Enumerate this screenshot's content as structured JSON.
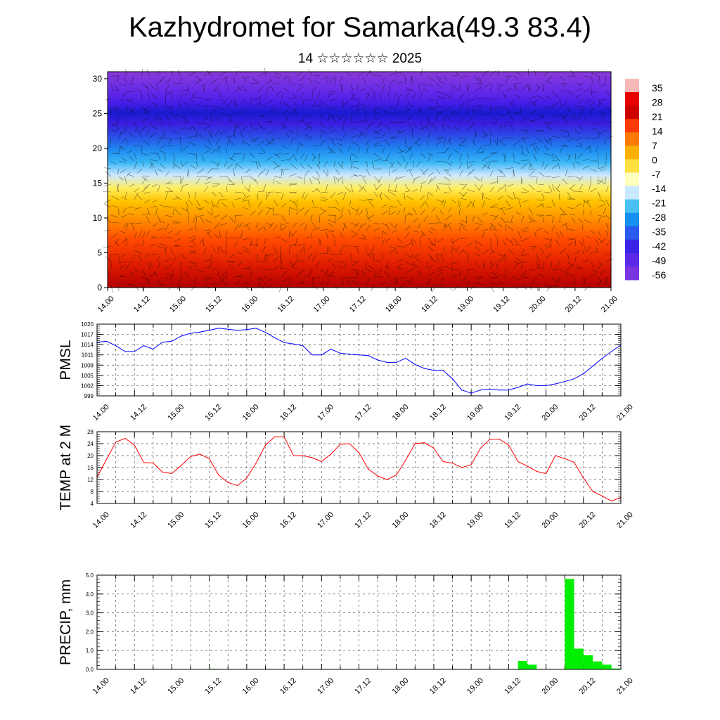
{
  "title": "Kazhydromet for Samarka(49.3 83.4)",
  "subtitle": "14 ☆☆☆☆☆☆ 2025",
  "time_ticks": [
    "14.00",
    "14.12",
    "15.00",
    "15.12",
    "16.00",
    "16.12",
    "17.00",
    "17.12",
    "18.00",
    "18.12",
    "19.00",
    "19.12",
    "20.00",
    "20.12",
    "21.00"
  ],
  "colors": {
    "pmsl_line": "#0000ff",
    "temp_line": "#ff0000",
    "precip_bar": "#00ee00"
  },
  "chart_data": [
    {
      "type": "heatmap",
      "title": "",
      "xlabel": "",
      "ylabel": "",
      "y_ticks": [
        "0",
        "5",
        "10",
        "15",
        "20",
        "25",
        "30"
      ],
      "ylim": [
        0,
        31
      ],
      "colorbar_labels": [
        "35",
        "28",
        "21",
        "14",
        "7",
        "0",
        "-7",
        "-14",
        "-21",
        "-28",
        "-35",
        "-42",
        "-49",
        "-56"
      ],
      "overlay": "wind barbs"
    },
    {
      "type": "line",
      "ylabel": "PMSL",
      "ylim": [
        999,
        1020
      ],
      "y_ticks": [
        "1020",
        "1017",
        "1014",
        "1011",
        "1008",
        "1005",
        "1002",
        "999"
      ],
      "x": [
        0,
        3,
        6,
        9,
        12,
        15,
        18,
        21,
        24,
        27,
        30,
        33,
        36,
        39,
        42,
        45,
        48,
        51,
        54,
        57,
        60,
        63,
        66,
        69,
        72,
        75,
        78,
        81,
        84,
        87,
        90,
        93,
        96,
        99,
        102,
        105,
        108,
        111,
        114,
        117,
        120,
        123,
        126,
        129,
        132,
        135,
        138,
        141,
        144,
        147,
        150,
        153,
        156,
        159,
        162,
        165,
        168
      ],
      "values": [
        1014.7,
        1015,
        1013.7,
        1012,
        1012,
        1013.7,
        1012.7,
        1014.7,
        1015,
        1016.5,
        1017.3,
        1017.7,
        1018.2,
        1018.8,
        1018.5,
        1018.2,
        1018.4,
        1018.8,
        1017.6,
        1016,
        1014.6,
        1014.2,
        1013.7,
        1011,
        1011,
        1012.7,
        1011.5,
        1011.2,
        1011,
        1010.8,
        1009.5,
        1008.8,
        1008.8,
        1010,
        1008.2,
        1007,
        1006.5,
        1006.5,
        1004,
        1000.7,
        999.8,
        1000.7,
        1001,
        1000.7,
        1000.7,
        1001.5,
        1002.5,
        1002,
        1002,
        1002.5,
        1003.2,
        1004,
        1005.5,
        1007.7,
        1010,
        1012,
        1013.9
      ]
    },
    {
      "type": "line",
      "ylabel": "TEMP at 2 M",
      "ylim": [
        4,
        28
      ],
      "y_ticks": [
        "28",
        "24",
        "20",
        "16",
        "12",
        "8",
        "4"
      ],
      "x": [
        0,
        6,
        9,
        12,
        15,
        18,
        21,
        24,
        27,
        30,
        33,
        36,
        39,
        42,
        45,
        48,
        51,
        54,
        57,
        60,
        63,
        66,
        69,
        72,
        75,
        78,
        81,
        84,
        87,
        90,
        93,
        96,
        99,
        102,
        105,
        108,
        111,
        114,
        117,
        120,
        123,
        126,
        129,
        132,
        135,
        138,
        141,
        144,
        147,
        150,
        153,
        156,
        159,
        162,
        165,
        168
      ],
      "values": [
        12.8,
        24.5,
        25.8,
        23.5,
        17.7,
        17.5,
        14.5,
        14,
        16.7,
        19.7,
        20.5,
        19,
        13.5,
        11,
        10,
        12.5,
        17.5,
        23.5,
        26.3,
        26.3,
        20,
        20,
        19.3,
        18,
        20.5,
        23.8,
        24,
        21,
        15.5,
        13.2,
        12,
        13.5,
        18.5,
        24,
        24.3,
        22.5,
        18,
        17.5,
        16,
        17,
        22.5,
        25.5,
        25.5,
        23.5,
        18,
        16.5,
        14.7,
        14,
        20,
        19,
        17.8,
        12.5,
        8,
        6.5,
        4.8,
        6
      ]
    },
    {
      "type": "bar",
      "ylabel": "PRECIP, mm",
      "ylim": [
        0,
        5
      ],
      "y_ticks": [
        "5.0",
        "4.0",
        "3.0",
        "2.0",
        "1.0",
        "0.0"
      ],
      "x": [
        36,
        135,
        138,
        150,
        153,
        156,
        159,
        162,
        165
      ],
      "values": [
        0.03,
        0.45,
        0.25,
        4.8,
        1.1,
        0.75,
        0.42,
        0.25,
        0.05
      ]
    }
  ]
}
